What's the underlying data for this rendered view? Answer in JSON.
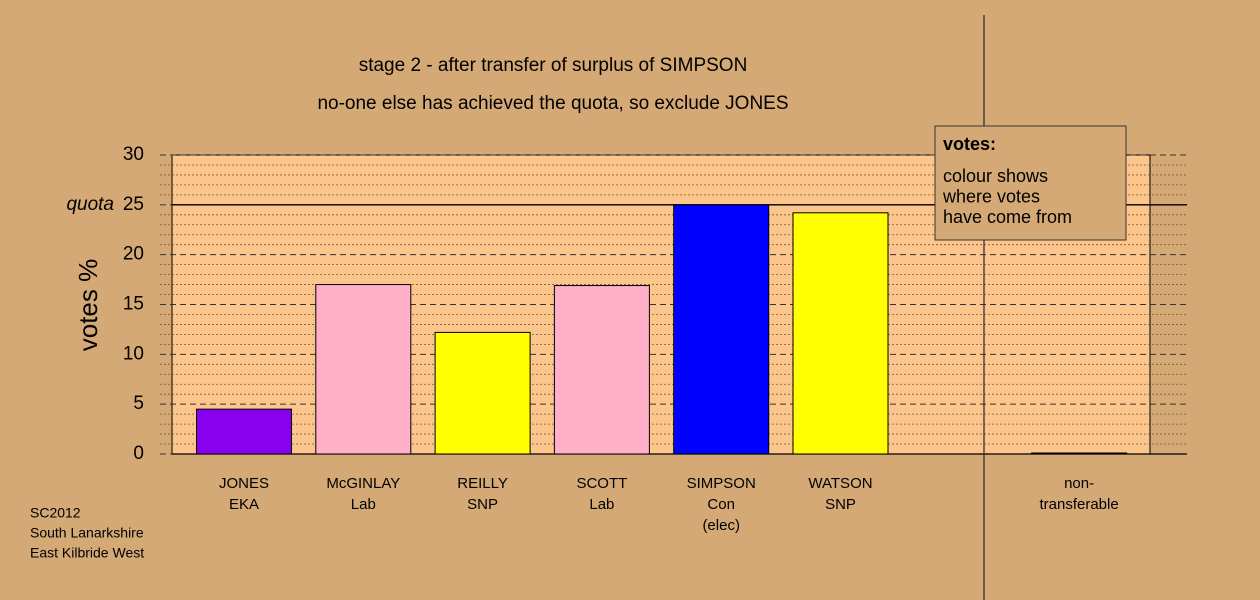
{
  "chart_data": {
    "type": "bar",
    "title": "stage 2 - after transfer of surplus of SIMPSON",
    "subtitle": "no-one else has achieved the quota, so exclude JONES",
    "y_label": "votes %",
    "categories": [
      [
        "JONES",
        "EKA"
      ],
      [
        "McGINLAY",
        "Lab"
      ],
      [
        "REILLY",
        "SNP"
      ],
      [
        "SCOTT",
        "Lab"
      ],
      [
        "SIMPSON",
        "Con",
        "(elec)"
      ],
      [
        "WATSON",
        "SNP"
      ],
      [
        "non-",
        "transferable"
      ]
    ],
    "values": [
      4.5,
      17.0,
      12.2,
      16.9,
      25.0,
      24.2,
      0.1
    ],
    "colors": [
      "#8800ee",
      "#ffb0c8",
      "#ffff00",
      "#ffb0c8",
      "#0000ff",
      "#ffff00",
      "#d4a975"
    ],
    "ylim": [
      0,
      30
    ],
    "yticks": [
      0,
      5,
      10,
      15,
      20,
      25,
      30
    ],
    "minor_yticks": [
      1,
      2,
      3,
      4,
      6,
      7,
      8,
      9,
      11,
      12,
      13,
      14,
      16,
      17,
      18,
      19,
      21,
      22,
      23,
      24,
      26,
      27,
      28,
      29
    ],
    "quota": {
      "value": 25,
      "label": "quota"
    },
    "legend": {
      "title": "votes:",
      "lines": [
        "colour shows",
        "where votes",
        "have come from"
      ]
    },
    "source": [
      "SC2012",
      "South Lanarkshire",
      "East Kilbride West"
    ]
  }
}
